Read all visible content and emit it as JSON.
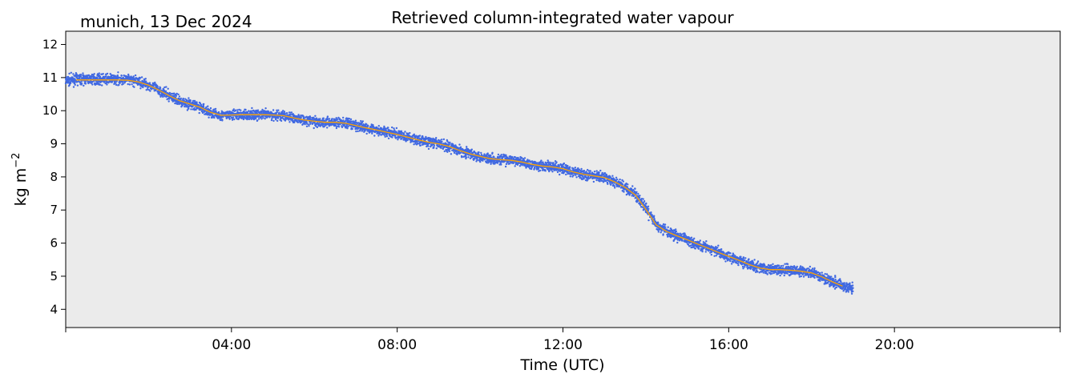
{
  "chart_data": {
    "type": "scatter",
    "title": "Retrieved column-integrated water vapour",
    "subtitle": "munich, 13 Dec 2024",
    "xlabel": "Time (UTC)",
    "ylabel_base": "kg m",
    "ylabel_exponent": "−2",
    "x_unit": "hours",
    "xlim": [
      0,
      24
    ],
    "ylim": [
      3.45,
      12.4
    ],
    "x_ticks": [
      {
        "value": 0,
        "label": ""
      },
      {
        "value": 4,
        "label": "04:00"
      },
      {
        "value": 8,
        "label": "08:00"
      },
      {
        "value": 12,
        "label": "12:00"
      },
      {
        "value": 16,
        "label": "16:00"
      },
      {
        "value": 20,
        "label": "20:00"
      },
      {
        "value": 24,
        "label": ""
      }
    ],
    "y_ticks": [
      {
        "value": 4,
        "label": "4"
      },
      {
        "value": 5,
        "label": "5"
      },
      {
        "value": 6,
        "label": "6"
      },
      {
        "value": 7,
        "label": "7"
      },
      {
        "value": 8,
        "label": "8"
      },
      {
        "value": 9,
        "label": "9"
      },
      {
        "value": 10,
        "label": "10"
      },
      {
        "value": 11,
        "label": "11"
      },
      {
        "value": 12,
        "label": "12"
      }
    ],
    "grid": false,
    "legend": "none",
    "plot_background": "#ebebeb",
    "series": [
      {
        "kind": "scatter",
        "color": "#4169e1",
        "x": [
          0.0,
          0.25,
          0.5,
          0.75,
          1.0,
          1.25,
          1.5,
          1.75,
          2.0,
          2.25,
          2.5,
          2.75,
          3.0,
          3.25,
          3.5,
          3.75,
          4.0,
          4.25,
          4.5,
          4.75,
          5.0,
          5.25,
          5.5,
          5.75,
          6.0,
          6.25,
          6.5,
          6.75,
          7.0,
          7.25,
          7.5,
          7.75,
          8.0,
          8.25,
          8.5,
          8.75,
          9.0,
          9.25,
          9.5,
          9.75,
          10.0,
          10.25,
          10.5,
          10.75,
          11.0,
          11.25,
          11.5,
          11.75,
          12.0,
          12.25,
          12.5,
          12.75,
          13.0,
          13.25,
          13.5,
          13.75,
          14.0,
          14.25,
          14.5,
          14.75,
          15.0,
          15.25,
          15.5,
          15.75,
          16.0,
          16.25,
          16.5,
          16.75,
          17.0,
          17.25,
          17.5,
          17.75,
          18.0,
          18.25,
          18.5,
          18.75,
          19.0
        ],
        "y": [
          10.9,
          10.95,
          10.95,
          10.95,
          10.95,
          10.95,
          10.93,
          10.88,
          10.78,
          10.62,
          10.45,
          10.3,
          10.2,
          10.1,
          9.93,
          9.85,
          9.87,
          9.88,
          9.88,
          9.88,
          9.87,
          9.85,
          9.78,
          9.72,
          9.68,
          9.65,
          9.65,
          9.62,
          9.55,
          9.48,
          9.42,
          9.35,
          9.28,
          9.2,
          9.12,
          9.05,
          9.0,
          8.92,
          8.8,
          8.7,
          8.62,
          8.55,
          8.52,
          8.5,
          8.45,
          8.38,
          8.33,
          8.3,
          8.25,
          8.15,
          8.08,
          8.03,
          7.98,
          7.85,
          7.68,
          7.45,
          7.05,
          6.55,
          6.35,
          6.22,
          6.1,
          5.97,
          5.85,
          5.72,
          5.6,
          5.48,
          5.35,
          5.25,
          5.2,
          5.2,
          5.18,
          5.15,
          5.1,
          4.98,
          4.85,
          4.72,
          4.62
        ]
      },
      {
        "kind": "line",
        "color": "#ffa500",
        "x": [
          0.25,
          0.5,
          0.75,
          1.0,
          1.25,
          1.5,
          1.75,
          2.0,
          2.25,
          2.5,
          2.75,
          3.0,
          3.25,
          3.5,
          3.75,
          4.0,
          4.25,
          4.5,
          4.75,
          5.0,
          5.25,
          5.5,
          5.75,
          6.0,
          6.25,
          6.5,
          6.75,
          7.0,
          7.25,
          7.5,
          7.75,
          8.0,
          8.25,
          8.5,
          8.75,
          9.0,
          9.25,
          9.5,
          9.75,
          10.0,
          10.25,
          10.5,
          10.75,
          11.0,
          11.25,
          11.5,
          11.75,
          12.0,
          12.25,
          12.5,
          12.75,
          13.0,
          13.25,
          13.5,
          13.75,
          14.0,
          14.25,
          14.5,
          14.75,
          15.0,
          15.25,
          15.5,
          15.75,
          16.0,
          16.25,
          16.5,
          16.75,
          17.0,
          17.25,
          17.5,
          17.75,
          18.0,
          18.25,
          18.5,
          18.75
        ],
        "y": [
          10.93,
          10.93,
          10.93,
          10.93,
          10.93,
          10.92,
          10.87,
          10.77,
          10.62,
          10.45,
          10.3,
          10.2,
          10.1,
          9.95,
          9.86,
          9.87,
          9.88,
          9.88,
          9.88,
          9.87,
          9.85,
          9.78,
          9.72,
          9.68,
          9.65,
          9.65,
          9.62,
          9.55,
          9.48,
          9.42,
          9.35,
          9.28,
          9.2,
          9.12,
          9.05,
          9.0,
          8.92,
          8.8,
          8.7,
          8.62,
          8.55,
          8.52,
          8.5,
          8.45,
          8.38,
          8.33,
          8.3,
          8.25,
          8.15,
          8.08,
          8.03,
          7.98,
          7.85,
          7.68,
          7.45,
          7.02,
          6.55,
          6.35,
          6.22,
          6.1,
          5.97,
          5.85,
          5.72,
          5.6,
          5.48,
          5.35,
          5.25,
          5.2,
          5.2,
          5.18,
          5.15,
          5.1,
          4.98,
          4.83,
          4.7
        ]
      }
    ]
  }
}
